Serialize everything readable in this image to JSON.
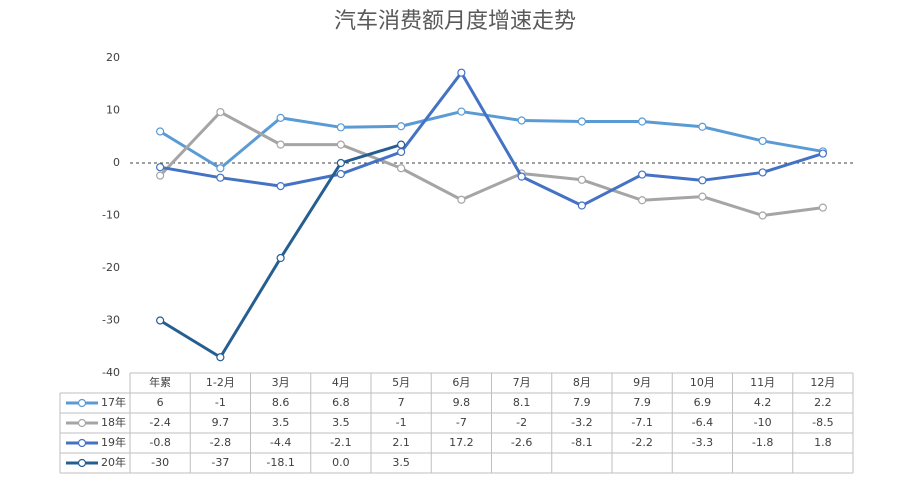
{
  "chart_data": {
    "type": "line",
    "title": "汽车消费额月度增速走势",
    "categories": [
      "年累",
      "1-2月",
      "3月",
      "4月",
      "5月",
      "6月",
      "7月",
      "8月",
      "9月",
      "10月",
      "11月",
      "12月"
    ],
    "series": [
      {
        "name": "17年",
        "color": "#5b9bd5",
        "values": [
          6,
          -1,
          8.6,
          6.8,
          7,
          9.8,
          8.1,
          7.9,
          7.9,
          6.9,
          4.2,
          2.2
        ]
      },
      {
        "name": "18年",
        "color": "#a5a5a5",
        "values": [
          -2.4,
          9.7,
          3.5,
          3.5,
          -1,
          -7,
          -2,
          -3.2,
          -7.1,
          -6.4,
          -10,
          -8.5
        ]
      },
      {
        "name": "19年",
        "color": "#4472c4",
        "values": [
          -0.8,
          -2.8,
          -4.4,
          -2.1,
          2.1,
          17.2,
          -2.6,
          -8.1,
          -2.2,
          -3.3,
          -1.8,
          1.8
        ]
      },
      {
        "name": "20年",
        "color": "#255e91",
        "values": [
          -30,
          -37,
          -18.1,
          0,
          3.5,
          null,
          null,
          null,
          null,
          null,
          null,
          null
        ],
        "value_labels": [
          "-30",
          "-37",
          "-18.1",
          "0.0",
          "3.5",
          null,
          null,
          null,
          null,
          null,
          null,
          null
        ]
      }
    ],
    "ylim": [
      -40,
      20
    ],
    "yticks": [
      -40,
      -30,
      -20,
      -10,
      0,
      10,
      20
    ],
    "zero_line": "dashed"
  }
}
